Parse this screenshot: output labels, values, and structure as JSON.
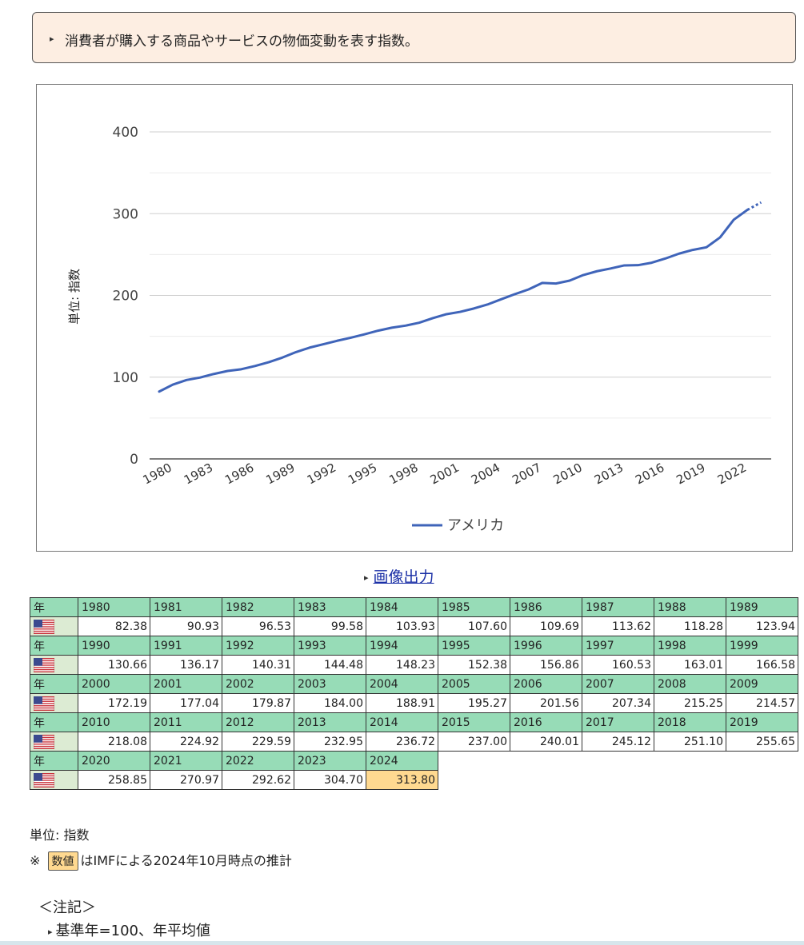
{
  "description": "消費者が購入する商品やサービスの物価変動を表す指数。",
  "chart_data": {
    "type": "line",
    "ylabel": "単位: 指数",
    "ylim": [
      0,
      400
    ],
    "yticks": [
      0,
      100,
      200,
      300,
      400
    ],
    "x": [
      1980,
      1981,
      1982,
      1983,
      1984,
      1985,
      1986,
      1987,
      1988,
      1989,
      1990,
      1991,
      1992,
      1993,
      1994,
      1995,
      1996,
      1997,
      1998,
      1999,
      2000,
      2001,
      2002,
      2003,
      2004,
      2005,
      2006,
      2007,
      2008,
      2009,
      2010,
      2011,
      2012,
      2013,
      2014,
      2015,
      2016,
      2017,
      2018,
      2019,
      2020,
      2021,
      2022,
      2023,
      2024
    ],
    "xtick_labels": [
      "1980",
      "1983",
      "1986",
      "1989",
      "1992",
      "1995",
      "1998",
      "2001",
      "2004",
      "2007",
      "2010",
      "2013",
      "2016",
      "2019",
      "2022"
    ],
    "series": [
      {
        "name": "アメリカ",
        "color": "#3f64b9",
        "values": [
          82.38,
          90.93,
          96.53,
          99.58,
          103.93,
          107.6,
          109.69,
          113.62,
          118.28,
          123.94,
          130.66,
          136.17,
          140.31,
          144.48,
          148.23,
          152.38,
          156.86,
          160.53,
          163.01,
          166.58,
          172.19,
          177.04,
          179.87,
          184.0,
          188.91,
          195.27,
          201.56,
          207.34,
          215.25,
          214.57,
          218.08,
          224.92,
          229.59,
          232.95,
          236.72,
          237.0,
          240.01,
          245.12,
          251.1,
          255.65,
          258.85,
          270.97,
          292.62,
          304.7,
          313.8
        ]
      }
    ],
    "legend": "bottom",
    "grid": true
  },
  "export_link": "画像出力",
  "table": {
    "year_header": "年",
    "rows": [
      {
        "years": [
          "1980",
          "1981",
          "1982",
          "1983",
          "1984",
          "1985",
          "1986",
          "1987",
          "1988",
          "1989"
        ],
        "values": [
          "82.38",
          "90.93",
          "96.53",
          "99.58",
          "103.93",
          "107.60",
          "109.69",
          "113.62",
          "118.28",
          "123.94"
        ]
      },
      {
        "years": [
          "1990",
          "1991",
          "1992",
          "1993",
          "1994",
          "1995",
          "1996",
          "1997",
          "1998",
          "1999"
        ],
        "values": [
          "130.66",
          "136.17",
          "140.31",
          "144.48",
          "148.23",
          "152.38",
          "156.86",
          "160.53",
          "163.01",
          "166.58"
        ]
      },
      {
        "years": [
          "2000",
          "2001",
          "2002",
          "2003",
          "2004",
          "2005",
          "2006",
          "2007",
          "2008",
          "2009"
        ],
        "values": [
          "172.19",
          "177.04",
          "179.87",
          "184.00",
          "188.91",
          "195.27",
          "201.56",
          "207.34",
          "215.25",
          "214.57"
        ]
      },
      {
        "years": [
          "2010",
          "2011",
          "2012",
          "2013",
          "2014",
          "2015",
          "2016",
          "2017",
          "2018",
          "2019"
        ],
        "values": [
          "218.08",
          "224.92",
          "229.59",
          "232.95",
          "236.72",
          "237.00",
          "240.01",
          "245.12",
          "251.10",
          "255.65"
        ]
      },
      {
        "years": [
          "2020",
          "2021",
          "2022",
          "2023",
          "2024"
        ],
        "values": [
          "258.85",
          "270.97",
          "292.62",
          "304.70",
          "313.80"
        ]
      }
    ],
    "estimate_years": [
      "2024"
    ],
    "flag_icon": "us-flag-icon"
  },
  "unit_text": "単位: 指数",
  "note": {
    "prefix": "※",
    "badge": "数値",
    "text": "はIMFによる2024年10月時点の推計"
  },
  "notes_title": "＜注記＞",
  "notes_items": [
    "基準年=100、年平均値"
  ]
}
